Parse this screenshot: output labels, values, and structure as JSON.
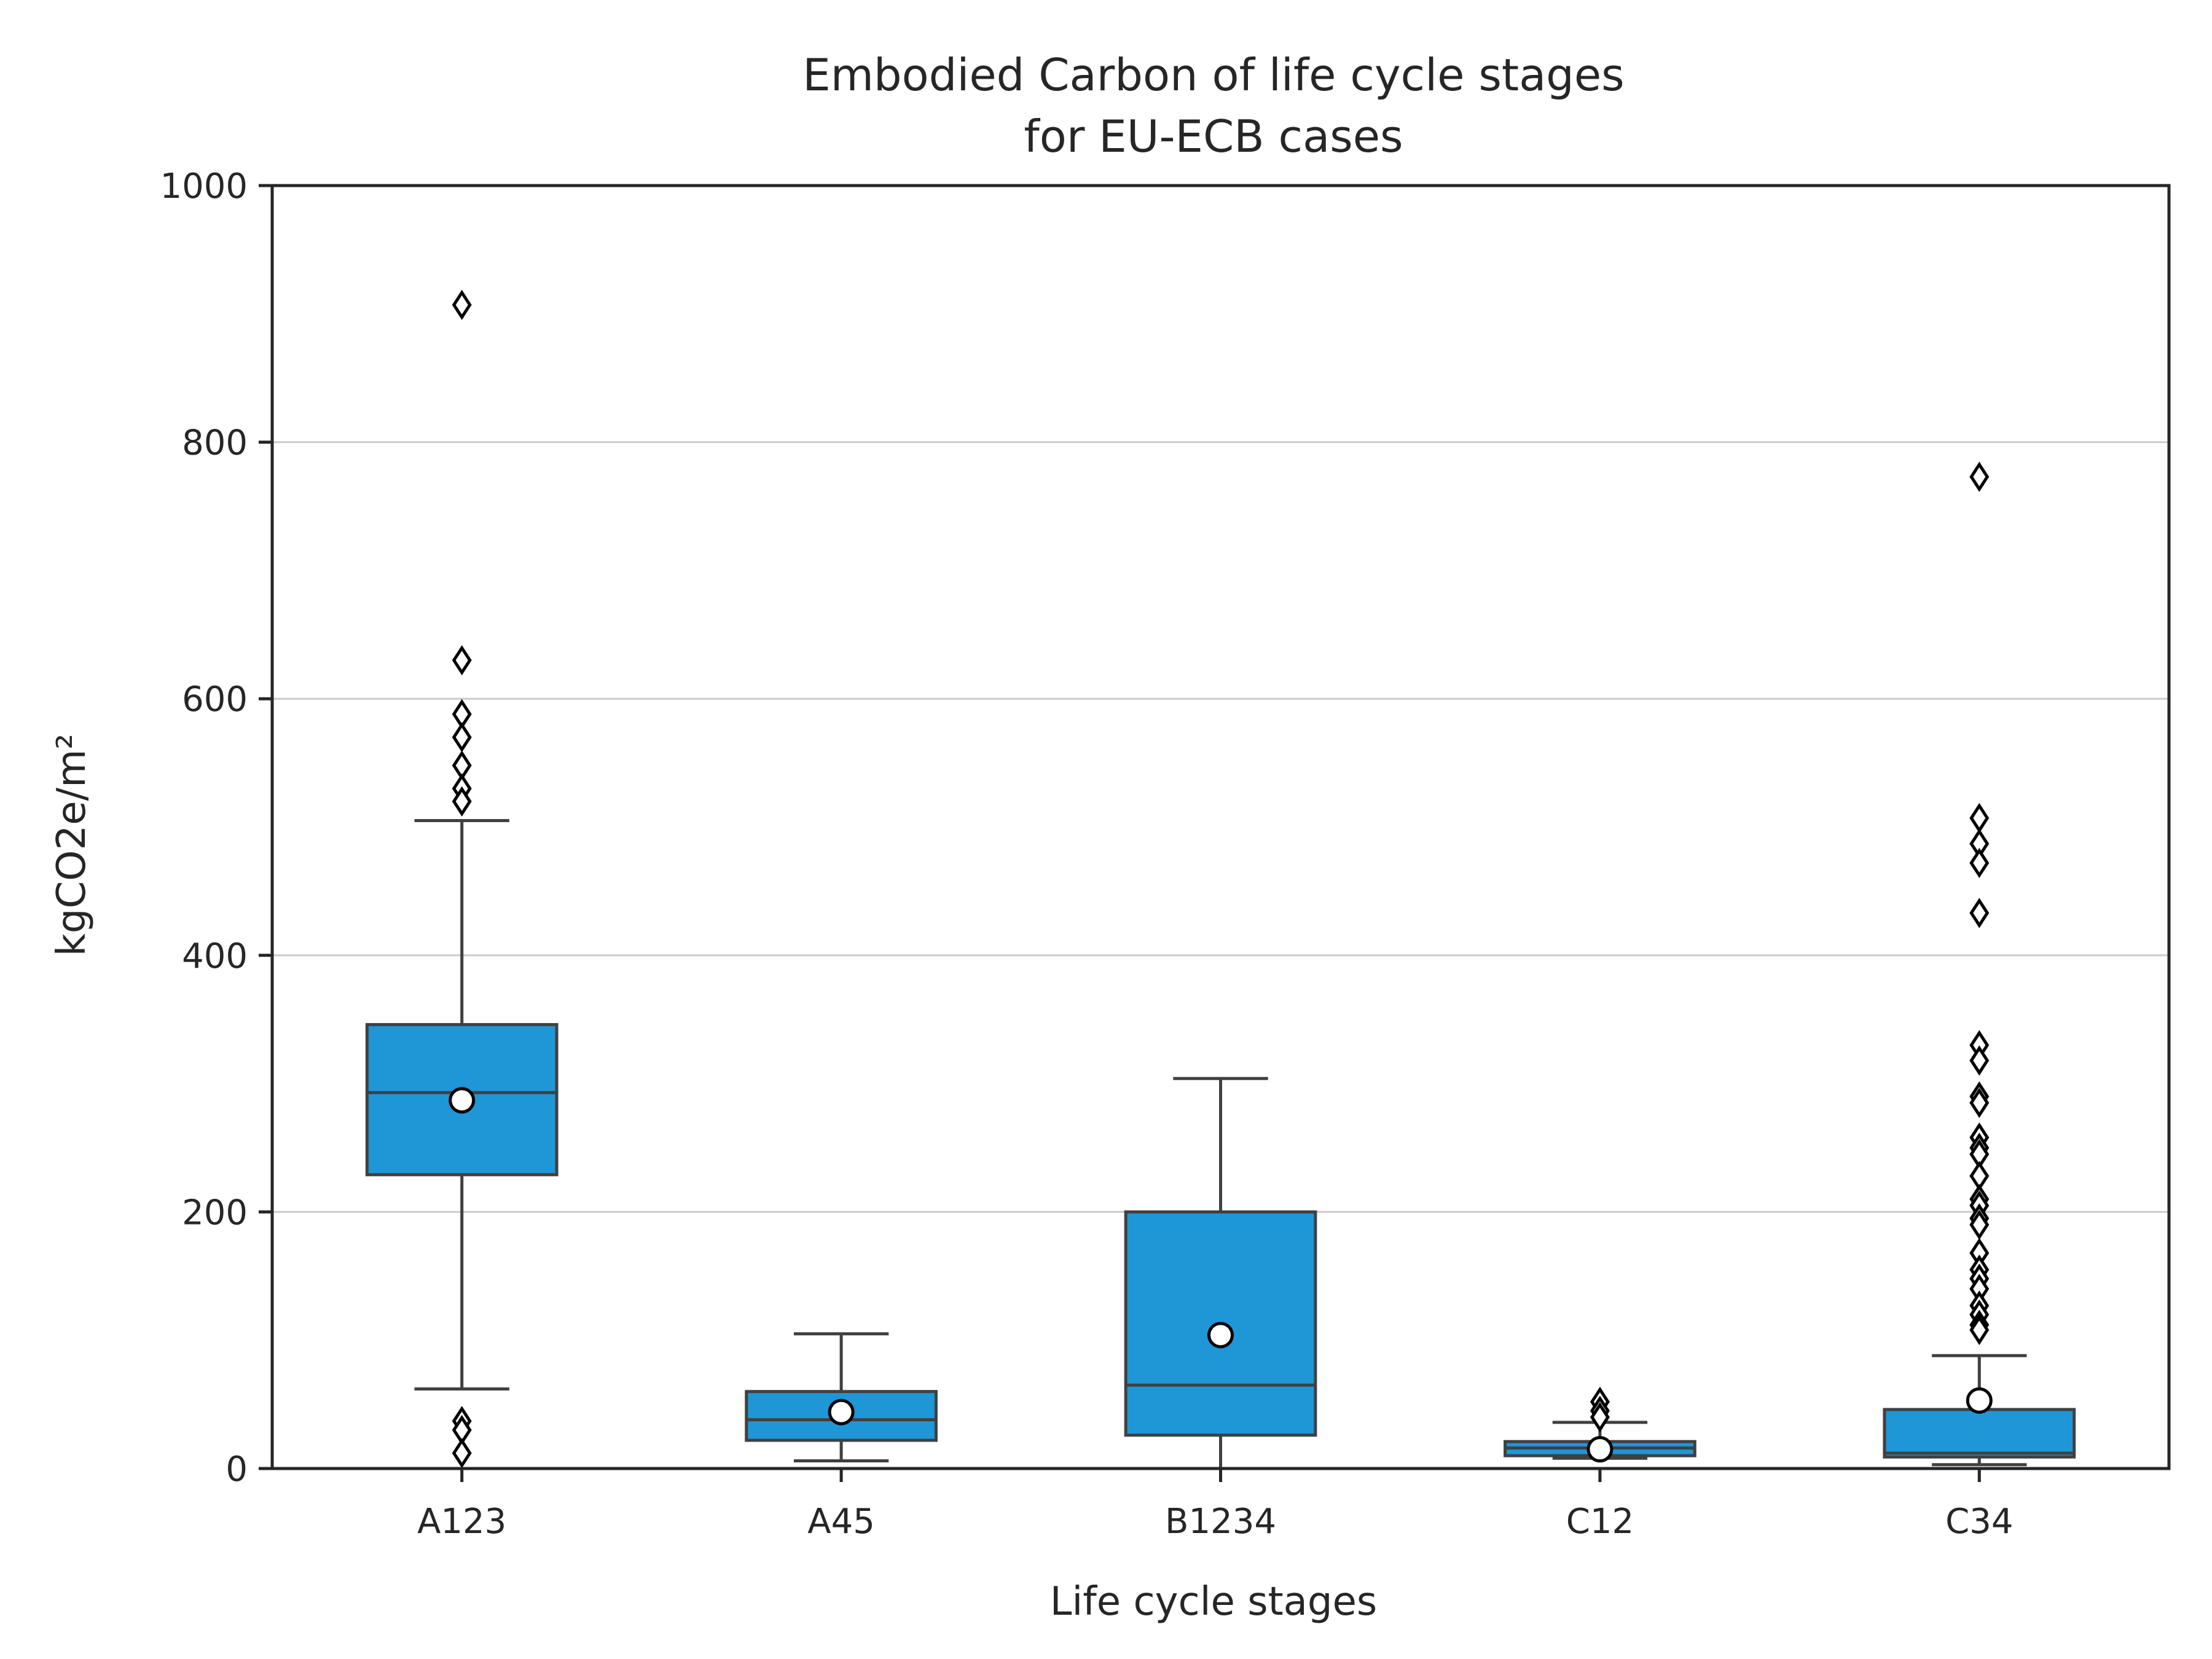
{
  "chart_data": {
    "type": "box",
    "title": [
      "Embodied Carbon of life cycle stages",
      "for EU-ECB cases"
    ],
    "xlabel": "Life cycle stages",
    "ylabel": "kgCO2e/m²",
    "ylim": [
      0,
      1000
    ],
    "yticks": [
      0,
      200,
      400,
      600,
      800,
      1000
    ],
    "grid": "horizontal",
    "colors": {
      "box_fill": "#1f96d6",
      "box_edge": "#404040",
      "grid": "#cccccc",
      "axis": "#262626",
      "mean_marker": "#ffffff",
      "outlier_edge": "#000000"
    },
    "categories": [
      "A123",
      "A45",
      "B1234",
      "C12",
      "C34"
    ],
    "boxes": [
      {
        "category": "A123",
        "whisker_low": 62,
        "q1": 229,
        "median": 293,
        "q3": 346,
        "whisker_high": 505,
        "mean": 287,
        "outliers": [
          907,
          630,
          588,
          570,
          548,
          530,
          520,
          37,
          30,
          12
        ]
      },
      {
        "category": "A45",
        "whisker_low": 6,
        "q1": 22,
        "median": 38,
        "q3": 60,
        "whisker_high": 105,
        "mean": 44,
        "outliers": []
      },
      {
        "category": "B1234",
        "whisker_low": 0,
        "q1": 26,
        "median": 65,
        "q3": 200,
        "whisker_high": 304,
        "mean": 104,
        "outliers": []
      },
      {
        "category": "C12",
        "whisker_low": 8,
        "q1": 10,
        "median": 16,
        "q3": 21,
        "whisker_high": 36,
        "mean": 15,
        "outliers": [
          52,
          45,
          40
        ]
      },
      {
        "category": "C34",
        "whisker_low": 3,
        "q1": 9,
        "median": 12,
        "q3": 46,
        "whisker_high": 88,
        "mean": 53,
        "outliers": [
          773,
          507,
          487,
          472,
          433,
          330,
          318,
          290,
          285,
          258,
          250,
          245,
          228,
          210,
          205,
          195,
          190,
          168,
          155,
          148,
          140,
          127,
          120,
          112,
          108
        ]
      }
    ]
  }
}
